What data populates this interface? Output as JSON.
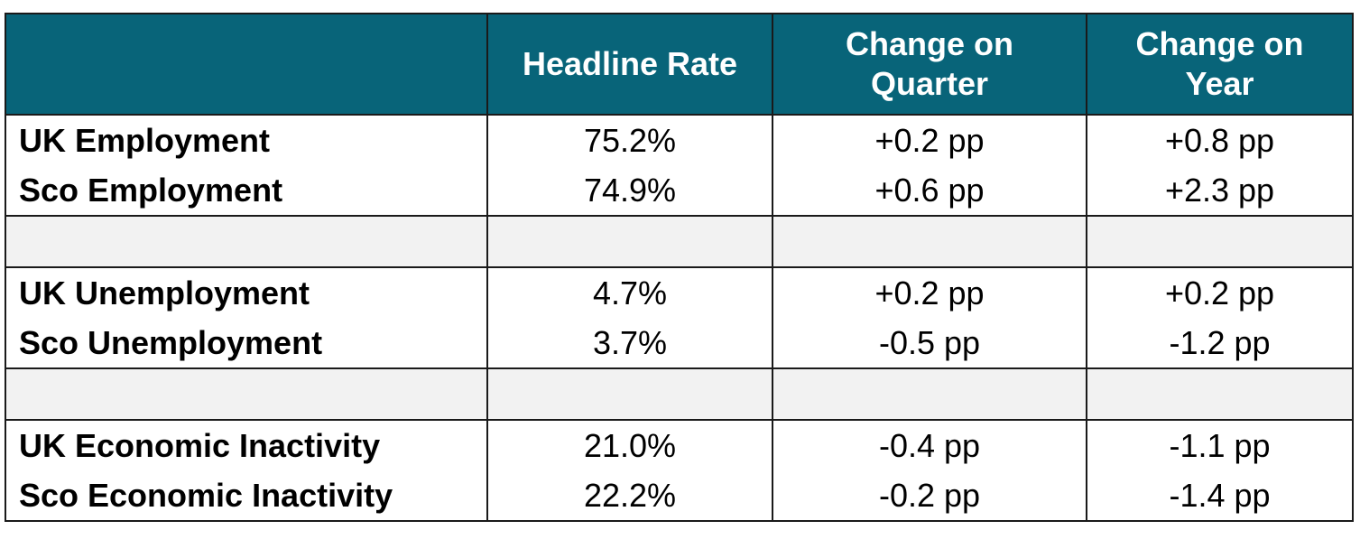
{
  "table": {
    "headers": [
      "",
      "Headline Rate",
      "Change on Quarter",
      "Change on Year"
    ],
    "groups": [
      {
        "rows": [
          {
            "label": "UK Employment",
            "headline": "75.2%",
            "quarter": "+0.2 pp",
            "year": "+0.8 pp"
          },
          {
            "label": "Sco Employment",
            "headline": "74.9%",
            "quarter": "+0.6 pp",
            "year": "+2.3 pp"
          }
        ]
      },
      {
        "rows": [
          {
            "label": "UK Unemployment",
            "headline": "4.7%",
            "quarter": "+0.2 pp",
            "year": "+0.2 pp"
          },
          {
            "label": "Sco Unemployment",
            "headline": "3.7%",
            "quarter": "-0.5 pp",
            "year": "-1.2 pp"
          }
        ]
      },
      {
        "rows": [
          {
            "label": "UK Economic Inactivity",
            "headline": "21.0%",
            "quarter": "-0.4 pp",
            "year": "-1.1 pp"
          },
          {
            "label": "Sco Economic Inactivity",
            "headline": "22.2%",
            "quarter": "-0.2 pp",
            "year": "-1.4 pp"
          }
        ]
      }
    ]
  },
  "colors": {
    "header_background": "#086479",
    "header_text": "#ffffff",
    "spacer_background": "#f2f2f2",
    "border": "#1a1a1a"
  }
}
